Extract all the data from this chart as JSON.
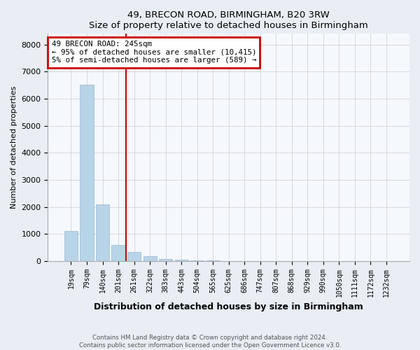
{
  "title1": "49, BRECON ROAD, BIRMINGHAM, B20 3RW",
  "title2": "Size of property relative to detached houses in Birmingham",
  "xlabel": "Distribution of detached houses by size in Birmingham",
  "ylabel": "Number of detached properties",
  "categories": [
    "19sqm",
    "79sqm",
    "140sqm",
    "201sqm",
    "261sqm",
    "322sqm",
    "383sqm",
    "443sqm",
    "504sqm",
    "565sqm",
    "625sqm",
    "686sqm",
    "747sqm",
    "807sqm",
    "868sqm",
    "929sqm",
    "990sqm",
    "1050sqm",
    "1111sqm",
    "1172sqm",
    "1232sqm"
  ],
  "values": [
    1100,
    6520,
    2100,
    600,
    330,
    180,
    80,
    50,
    25,
    15,
    8,
    4,
    2,
    1,
    1,
    0,
    0,
    0,
    0,
    0,
    0
  ],
  "bar_color": "#b8d4e8",
  "bar_edge_color": "#9ab8d0",
  "red_line_index": 3.5,
  "annotation_line1": "49 BRECON ROAD: 245sqm",
  "annotation_line2": "← 95% of detached houses are smaller (10,415)",
  "annotation_line3": "5% of semi-detached houses are larger (589) →",
  "annotation_box_color": "#cc0000",
  "ylim": [
    0,
    8400
  ],
  "yticks": [
    0,
    1000,
    2000,
    3000,
    4000,
    5000,
    6000,
    7000,
    8000
  ],
  "footer_line1": "Contains HM Land Registry data © Crown copyright and database right 2024.",
  "footer_line2": "Contains public sector information licensed under the Open Government Licence v3.0.",
  "bg_color": "#e8eef4",
  "plot_bg_color": "#f5f8fc"
}
